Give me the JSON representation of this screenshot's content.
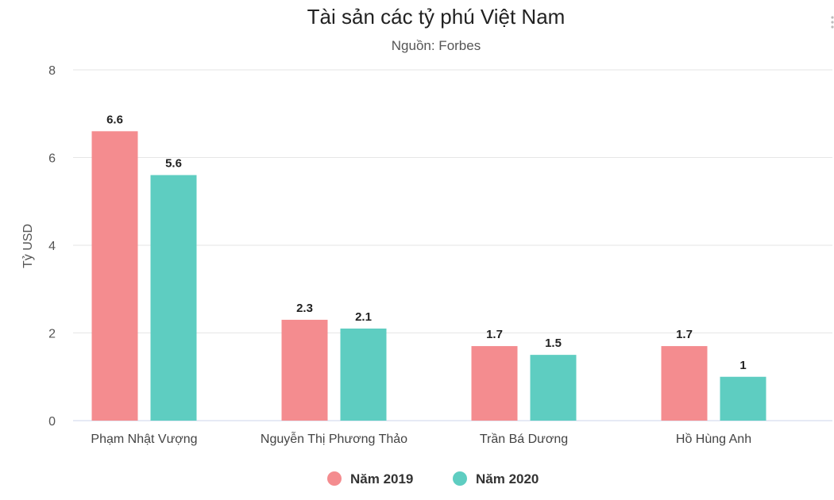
{
  "chart_data": {
    "type": "bar",
    "title": "Tài sản các tỷ phú Việt Nam",
    "subtitle": "Nguồn: Forbes",
    "ylabel": "Tỷ USD",
    "xlabel": "",
    "ylim": [
      0,
      8
    ],
    "yticks": [
      0,
      2,
      4,
      6,
      8
    ],
    "grid": true,
    "legend": "bottom-center",
    "categories": [
      "Phạm Nhật Vượng",
      "Nguyễn Thị Phương Thảo",
      "Trần Bá Dương",
      "Hồ Hùng Anh"
    ],
    "series": [
      {
        "name": "Năm 2019",
        "color": "#f48c8f",
        "values": [
          6.6,
          2.3,
          1.7,
          1.7
        ]
      },
      {
        "name": "Năm 2020",
        "color": "#5ecdc1",
        "values": [
          5.6,
          2.1,
          1.5,
          1
        ]
      }
    ]
  }
}
